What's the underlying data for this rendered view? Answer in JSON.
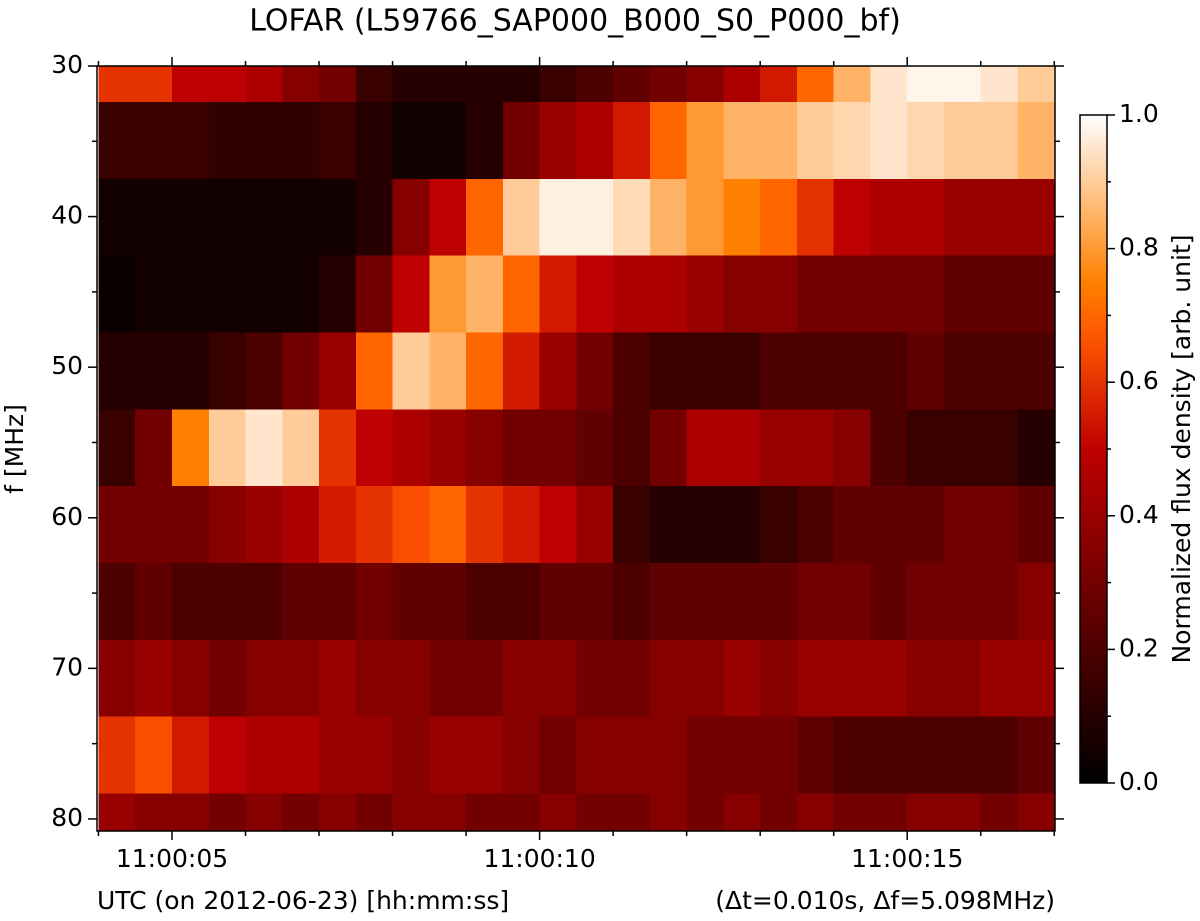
{
  "chart_data": {
    "type": "heatmap",
    "title": "LOFAR  (L59766_SAP000_B000_S0_P000_bf)",
    "xlabel": "UTC (on 2012-06-23) [hh:mm:ss]",
    "xlabel_right": "(Δt=0.010s, Δf=5.098MHz)",
    "ylabel": "f [MHz]",
    "colorbar_label": "Normalized flux density [arb. unit]",
    "colormap": "gist_heat",
    "clim": [
      0,
      1
    ],
    "cticks": [
      {
        "value": 0,
        "label": "0.0"
      },
      {
        "value": 0.2,
        "label": "0.2"
      },
      {
        "value": 0.4,
        "label": "0.4"
      },
      {
        "value": 0.6,
        "label": "0.6"
      },
      {
        "value": 0.8,
        "label": "0.8"
      },
      {
        "value": 1,
        "label": "1.0"
      }
    ],
    "cminorticks": [
      0.1,
      0.3,
      0.5,
      0.7,
      0.9
    ],
    "xlim": [
      3.98,
      17.01
    ],
    "xticks": [
      {
        "value": 5,
        "label": "11:00:05"
      },
      {
        "value": 10,
        "label": "11:00:10"
      },
      {
        "value": 15,
        "label": "11:00:15"
      }
    ],
    "xminorticks": [
      4,
      6,
      7,
      8,
      9,
      11,
      12,
      13,
      14,
      16,
      17
    ],
    "ylim": [
      80.8,
      30
    ],
    "yticks": [
      30,
      40,
      50,
      60,
      70,
      80
    ],
    "yminorticks": [
      35,
      45,
      55,
      65,
      75
    ],
    "x_edges": [
      4,
      4.5,
      5,
      5.5,
      6,
      6.5,
      7,
      7.5,
      8,
      8.5,
      9,
      9.5,
      10,
      10.5,
      11,
      11.5,
      12,
      12.5,
      13,
      13.5,
      14,
      14.5,
      15,
      15.5,
      16,
      16.5,
      17
    ],
    "y_edges": [
      30,
      32.4,
      37.5,
      42.6,
      47.7,
      52.8,
      57.9,
      63.0,
      68.1,
      73.2,
      78.3,
      80.8
    ],
    "values": [
      [
        0.6,
        0.6,
        0.5,
        0.5,
        0.45,
        0.35,
        0.3,
        0.15,
        0.1,
        0.1,
        0.1,
        0.1,
        0.15,
        0.2,
        0.25,
        0.3,
        0.35,
        0.45,
        0.55,
        0.7,
        0.85,
        0.95,
        0.98,
        0.98,
        0.95,
        0.9
      ],
      [
        0.15,
        0.15,
        0.15,
        0.12,
        0.12,
        0.12,
        0.15,
        0.1,
        0.05,
        0.05,
        0.1,
        0.3,
        0.4,
        0.45,
        0.55,
        0.7,
        0.8,
        0.85,
        0.85,
        0.9,
        0.92,
        0.95,
        0.92,
        0.9,
        0.9,
        0.85
      ],
      [
        0.05,
        0.05,
        0.05,
        0.05,
        0.05,
        0.05,
        0.05,
        0.1,
        0.35,
        0.5,
        0.7,
        0.9,
        0.97,
        0.97,
        0.93,
        0.85,
        0.8,
        0.75,
        0.7,
        0.6,
        0.5,
        0.45,
        0.45,
        0.4,
        0.4,
        0.4
      ],
      [
        0.03,
        0.05,
        0.05,
        0.05,
        0.05,
        0.05,
        0.1,
        0.3,
        0.5,
        0.8,
        0.85,
        0.7,
        0.55,
        0.5,
        0.45,
        0.45,
        0.4,
        0.35,
        0.35,
        0.3,
        0.3,
        0.3,
        0.3,
        0.25,
        0.25,
        0.25
      ],
      [
        0.1,
        0.1,
        0.1,
        0.15,
        0.2,
        0.3,
        0.4,
        0.7,
        0.9,
        0.85,
        0.7,
        0.55,
        0.4,
        0.3,
        0.2,
        0.15,
        0.15,
        0.15,
        0.2,
        0.2,
        0.2,
        0.2,
        0.25,
        0.2,
        0.2,
        0.2
      ],
      [
        0.15,
        0.3,
        0.75,
        0.9,
        0.95,
        0.9,
        0.6,
        0.5,
        0.45,
        0.4,
        0.35,
        0.3,
        0.3,
        0.25,
        0.2,
        0.3,
        0.45,
        0.45,
        0.4,
        0.4,
        0.35,
        0.2,
        0.15,
        0.15,
        0.15,
        0.1
      ],
      [
        0.3,
        0.3,
        0.3,
        0.35,
        0.4,
        0.45,
        0.55,
        0.6,
        0.65,
        0.7,
        0.6,
        0.55,
        0.5,
        0.4,
        0.15,
        0.1,
        0.1,
        0.1,
        0.15,
        0.2,
        0.25,
        0.25,
        0.25,
        0.3,
        0.3,
        0.25
      ],
      [
        0.2,
        0.25,
        0.2,
        0.2,
        0.2,
        0.25,
        0.25,
        0.3,
        0.25,
        0.25,
        0.2,
        0.2,
        0.25,
        0.25,
        0.2,
        0.25,
        0.25,
        0.25,
        0.25,
        0.3,
        0.3,
        0.25,
        0.3,
        0.3,
        0.3,
        0.35
      ],
      [
        0.35,
        0.4,
        0.35,
        0.3,
        0.35,
        0.35,
        0.4,
        0.35,
        0.35,
        0.3,
        0.3,
        0.35,
        0.35,
        0.3,
        0.3,
        0.35,
        0.35,
        0.4,
        0.35,
        0.4,
        0.4,
        0.4,
        0.35,
        0.35,
        0.4,
        0.4
      ],
      [
        0.6,
        0.65,
        0.55,
        0.5,
        0.45,
        0.45,
        0.4,
        0.4,
        0.35,
        0.4,
        0.4,
        0.35,
        0.3,
        0.35,
        0.35,
        0.35,
        0.3,
        0.3,
        0.3,
        0.25,
        0.2,
        0.2,
        0.2,
        0.2,
        0.2,
        0.25
      ],
      [
        0.4,
        0.35,
        0.35,
        0.3,
        0.35,
        0.3,
        0.35,
        0.3,
        0.35,
        0.35,
        0.3,
        0.3,
        0.35,
        0.3,
        0.3,
        0.35,
        0.3,
        0.35,
        0.3,
        0.35,
        0.3,
        0.3,
        0.35,
        0.35,
        0.3,
        0.35
      ]
    ]
  }
}
